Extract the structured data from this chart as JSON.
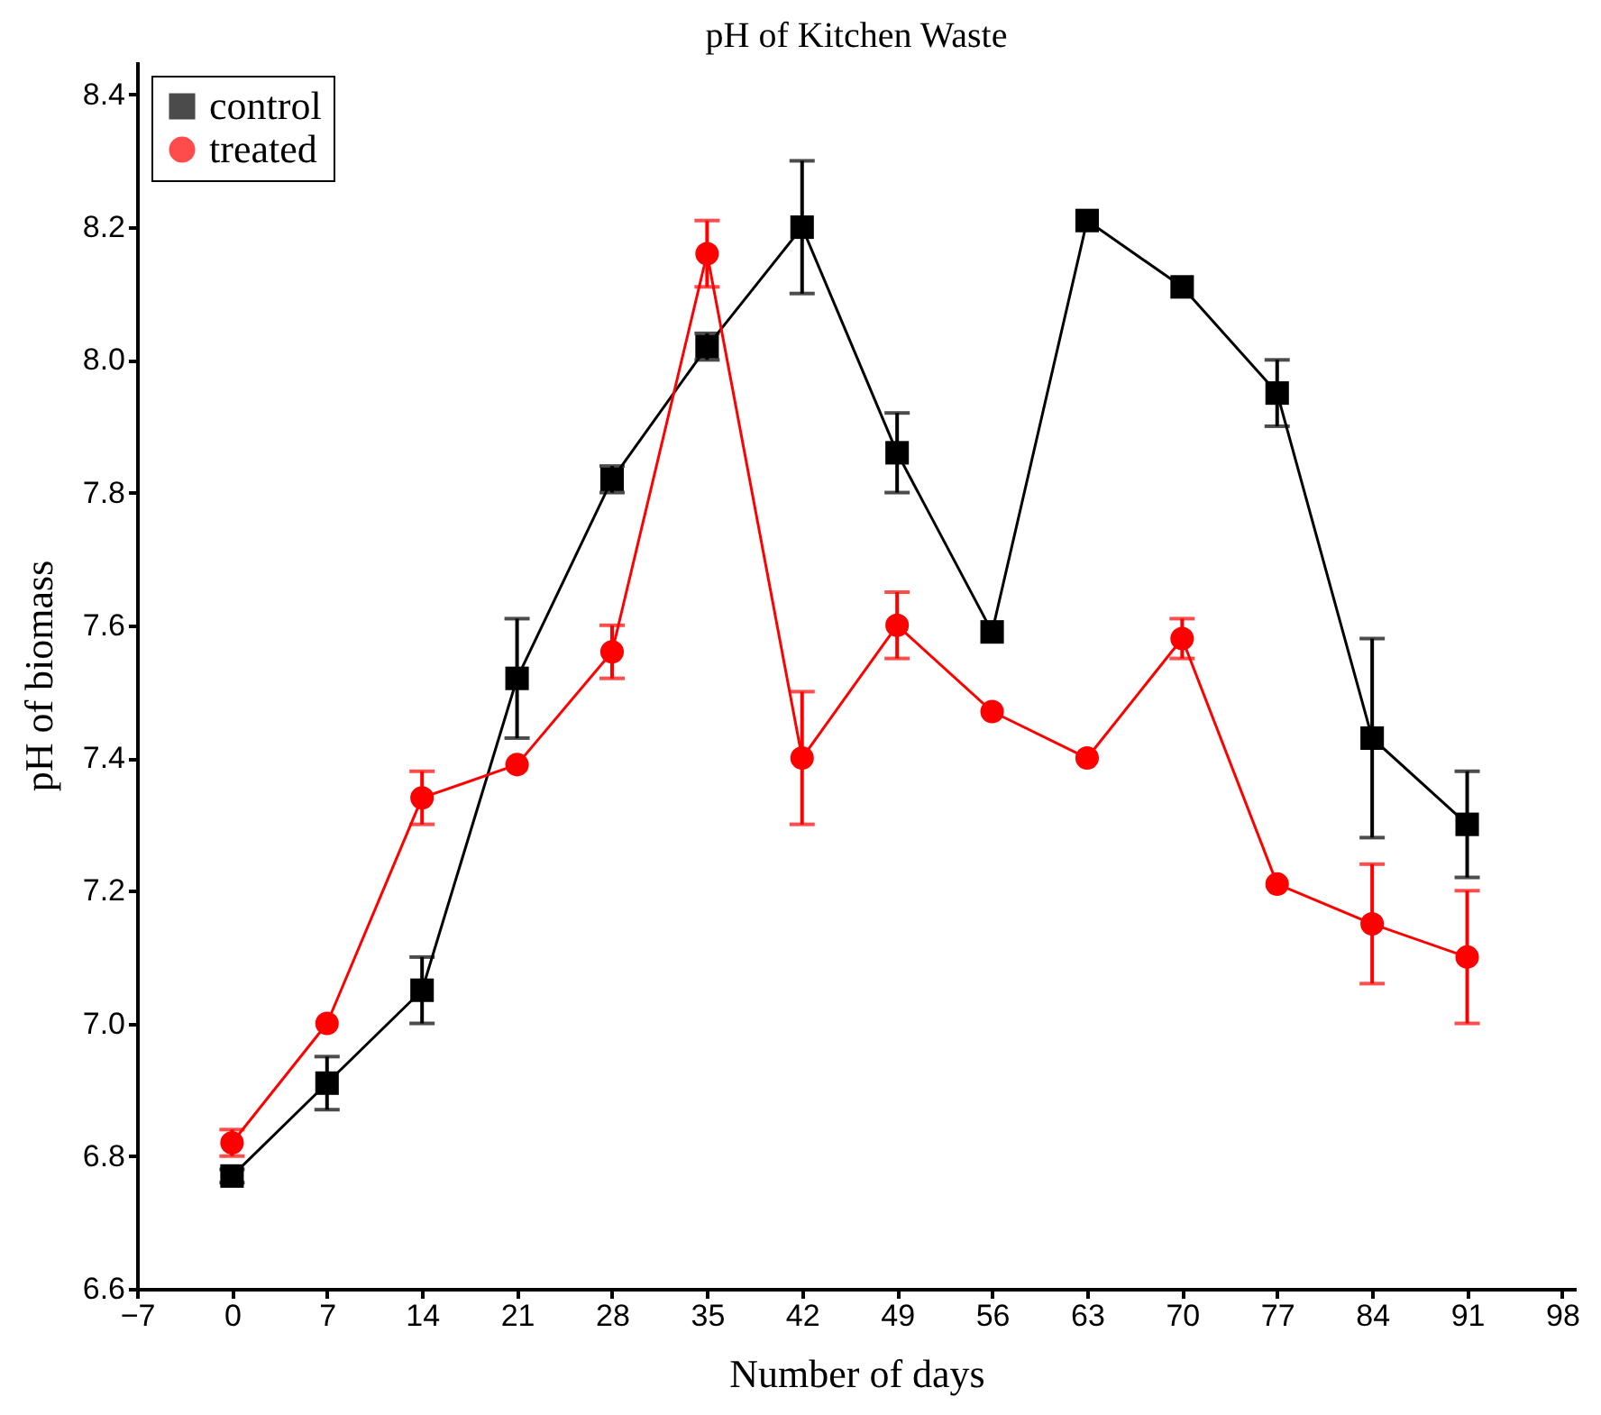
{
  "chart_data": {
    "type": "line",
    "title": "pH of Kitchen Waste",
    "xlabel": "Number of days",
    "ylabel": "pH of biomass",
    "x": [
      0,
      7,
      14,
      21,
      28,
      35,
      42,
      49,
      56,
      63,
      70,
      77,
      84,
      91
    ],
    "series": [
      {
        "name": "control",
        "color": "#000000",
        "marker": "square",
        "values": [
          6.77,
          6.91,
          7.05,
          7.52,
          7.82,
          8.02,
          8.2,
          7.86,
          7.59,
          8.21,
          8.11,
          7.95,
          7.43,
          7.3
        ],
        "errors": [
          0.01,
          0.04,
          0.05,
          0.09,
          0.02,
          0.02,
          0.1,
          0.06,
          null,
          null,
          null,
          0.05,
          0.15,
          0.08
        ]
      },
      {
        "name": "treated",
        "color": "#ff0000",
        "marker": "circle",
        "values": [
          6.82,
          7.0,
          7.34,
          7.39,
          7.56,
          8.16,
          7.4,
          7.6,
          7.47,
          7.4,
          7.58,
          7.21,
          7.15,
          7.1
        ],
        "errors": [
          0.02,
          null,
          0.04,
          null,
          0.04,
          0.05,
          0.1,
          0.05,
          null,
          null,
          0.03,
          null,
          0.09,
          0.1
        ]
      }
    ],
    "xlim": [
      -7,
      99
    ],
    "xticks": [
      -7,
      0,
      7,
      14,
      21,
      28,
      35,
      42,
      49,
      56,
      63,
      70,
      77,
      84,
      91,
      98
    ],
    "ylim": [
      6.6,
      8.45
    ],
    "yticks": [
      6.6,
      6.8,
      {
        "value": 7,
        "label": "7.0"
      },
      7.2,
      7.4,
      7.6,
      7.8,
      {
        "value": 8,
        "label": "8.0"
      },
      8.2,
      8.4
    ],
    "grid": false,
    "legend": "top left"
  }
}
